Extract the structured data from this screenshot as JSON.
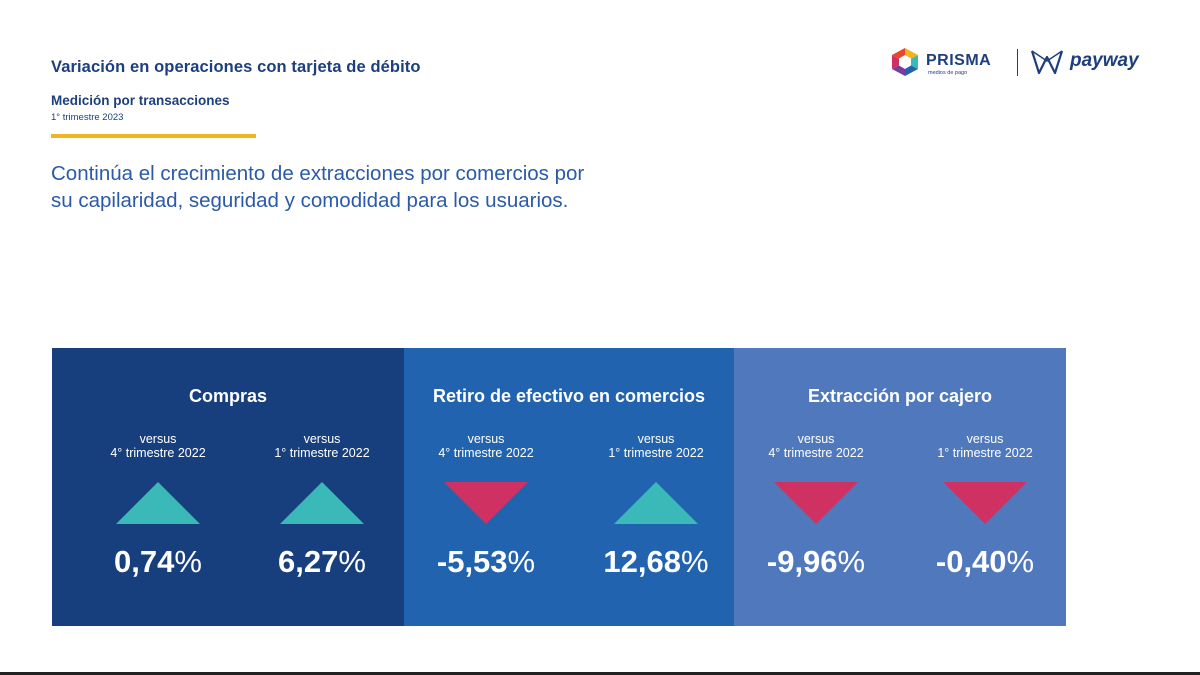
{
  "header": {
    "title": "Variación en operaciones con tarjeta de débito",
    "subtitle": "Medición por transacciones",
    "period": "1° trimestre 2023",
    "accent_color": "#f2b41c"
  },
  "headline": {
    "line1": "Continúa el crecimiento de extracciones por comercios por",
    "line2": "su capilaridad, seguridad y comodidad para los usuarios."
  },
  "logos": {
    "prisma": {
      "name": "PRISMA",
      "tagline": "medios de pago",
      "icon": "prisma-cube-icon"
    },
    "payway": {
      "name": "payway",
      "icon": "payway-mark-icon"
    }
  },
  "colors": {
    "up": "#3bb8b8",
    "down": "#cf3163"
  },
  "panels": [
    {
      "title": "Compras",
      "background": "#183f7d",
      "metrics": [
        {
          "versus": "versus",
          "period": "4° trimestre 2022",
          "direction": "up",
          "value": "0,74",
          "unit": "%"
        },
        {
          "versus": "versus",
          "period": "1° trimestre 2022",
          "direction": "up",
          "value": "6,27",
          "unit": "%"
        }
      ]
    },
    {
      "title": "Retiro de efectivo en comercios",
      "background": "#2163af",
      "metrics": [
        {
          "versus": "versus",
          "period": "4° trimestre 2022",
          "direction": "down",
          "value": "-5,53",
          "unit": "%"
        },
        {
          "versus": "versus",
          "period": "1° trimestre 2022",
          "direction": "up",
          "value": "12,68",
          "unit": "%"
        }
      ]
    },
    {
      "title": "Extracción por cajero",
      "background": "#5078bd",
      "metrics": [
        {
          "versus": "versus",
          "period": "4° trimestre 2022",
          "direction": "down",
          "value": "-9,96",
          "unit": "%"
        },
        {
          "versus": "versus",
          "period": "1° trimestre 2022",
          "direction": "down",
          "value": "-0,40",
          "unit": "%"
        }
      ]
    }
  ]
}
